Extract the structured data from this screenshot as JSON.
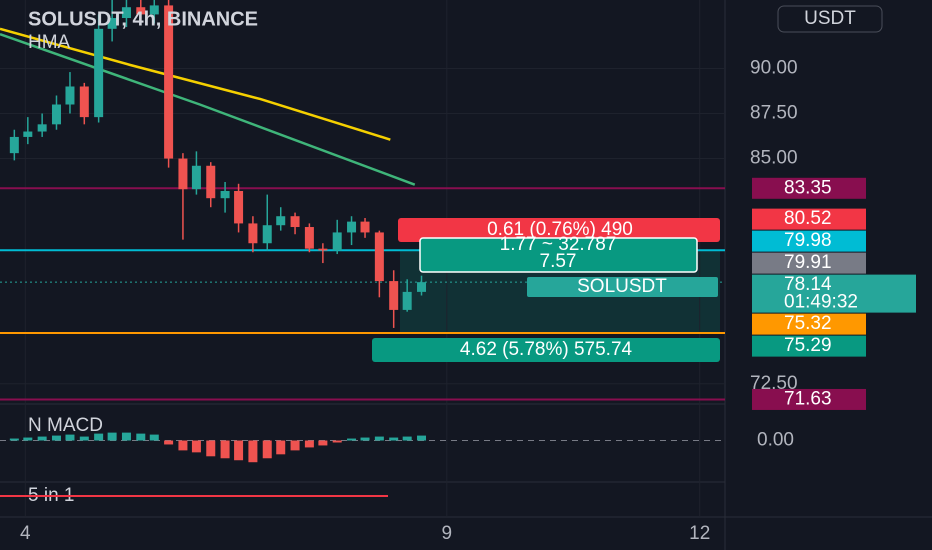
{
  "chart_data": {
    "type": "candlestick",
    "title": "SOLUSDT, 4h, BINANCE",
    "indicator": "HMA",
    "currency": "USDT",
    "up_color": "#26a69a",
    "down_color": "#ef5350",
    "x": [
      3.87,
      4.03,
      4.2,
      4.37,
      4.53,
      4.7,
      4.87,
      5.03,
      5.2,
      5.37,
      5.53,
      5.7,
      5.87,
      6.03,
      6.2,
      6.37,
      6.53,
      6.7,
      6.87,
      7.03,
      7.2,
      7.37,
      7.53,
      7.7,
      7.87,
      8.03,
      8.2,
      8.37,
      8.53,
      8.7
    ],
    "open": [
      85.3,
      86.2,
      86.5,
      86.9,
      88.0,
      89.0,
      87.3,
      92.2,
      92.8,
      93.4,
      93.0,
      93.5,
      85.0,
      83.3,
      84.6,
      82.8,
      83.2,
      81.4,
      80.3,
      81.3,
      81.8,
      81.2,
      80.0,
      79.9,
      80.9,
      81.5,
      80.9,
      78.2,
      76.6,
      77.6
    ],
    "high": [
      86.6,
      87.3,
      87.5,
      88.5,
      89.8,
      89.2,
      93.0,
      93.8,
      93.8,
      93.8,
      93.8,
      93.8,
      85.3,
      85.4,
      84.8,
      83.7,
      83.6,
      81.8,
      83.0,
      82.3,
      82.0,
      81.4,
      80.3,
      81.6,
      81.8,
      81.7,
      81.0,
      78.8,
      78.3,
      78.5
    ],
    "low": [
      84.9,
      85.8,
      86.2,
      86.6,
      87.5,
      86.9,
      87.0,
      91.5,
      92.3,
      92.6,
      92.5,
      84.5,
      80.5,
      83.0,
      82.3,
      82.0,
      80.9,
      79.8,
      79.9,
      81.0,
      80.8,
      79.8,
      79.2,
      79.7,
      80.2,
      80.6,
      77.3,
      75.6,
      76.5,
      77.4
    ],
    "close": [
      86.2,
      86.5,
      86.9,
      88.0,
      89.0,
      87.3,
      92.2,
      92.8,
      93.4,
      93.0,
      93.5,
      85.0,
      83.3,
      84.6,
      82.8,
      83.2,
      81.4,
      80.3,
      81.3,
      81.8,
      81.2,
      80.0,
      79.9,
      80.9,
      81.5,
      80.9,
      78.2,
      76.6,
      77.6,
      78.14
    ],
    "xlim": [
      3.7,
      12.3
    ],
    "xticks": [
      4,
      9,
      12
    ],
    "ylim": [
      71.6,
      93.8
    ],
    "yticks": [
      {
        "value": 90,
        "label": "90.00"
      },
      {
        "value": 87.5,
        "label": "87.50"
      },
      {
        "value": 85,
        "label": "85.00"
      },
      {
        "value": 72.5,
        "label": "72.50"
      }
    ],
    "hma": [
      {
        "color": "#f5d000",
        "x": [
          3.7,
          5.24,
          6.79,
          8.33
        ],
        "values": [
          92.2,
          90.2,
          88.3,
          86.05
        ]
      },
      {
        "color": "#3fb57a",
        "x": [
          3.7,
          6.07,
          8.62
        ],
        "values": [
          91.9,
          88.0,
          83.55
        ]
      }
    ],
    "hlines": [
      {
        "value": 83.35,
        "color": "#880e4f"
      },
      {
        "value": 79.91,
        "color": "#00bcd4"
      },
      {
        "value": 75.32,
        "color": "#ff9800"
      },
      {
        "value": 71.63,
        "color": "#880e4f"
      }
    ],
    "price_labels": [
      {
        "value": 83.35,
        "color": "#880e4f"
      },
      {
        "value": 80.52,
        "color": "#f23645"
      },
      {
        "value": 79.98,
        "color": "#00bcd4"
      },
      {
        "value": 79.91,
        "color": "#787b86"
      },
      {
        "value": 78.14,
        "color": "#26a69a",
        "sublabel": "01:49:32"
      },
      {
        "value": 75.32,
        "color": "#ff9800"
      },
      {
        "value": 75.29,
        "color": "#089981"
      },
      {
        "value": 71.63,
        "color": "#880e4f"
      }
    ],
    "position": {
      "stop_label": "0.61 (0.76%) 490",
      "info": [
        "1.77 ~ 32.787",
        "7.57"
      ],
      "symbol": "SOLUSDT",
      "target_label": "4.62 (5.78%) 575.74"
    },
    "macd": {
      "name": "N MACD",
      "ylim": [
        -1.9,
        1.8
      ],
      "yticks": [
        {
          "value": 0,
          "label": "0.00"
        }
      ],
      "values": [
        0.1,
        0.15,
        0.2,
        0.25,
        0.3,
        0.2,
        0.35,
        0.4,
        0.4,
        0.35,
        0.3,
        -0.2,
        -0.5,
        -0.6,
        -0.8,
        -0.9,
        -1.0,
        -1.1,
        -0.9,
        -0.7,
        -0.5,
        -0.35,
        -0.25,
        -0.1,
        0.1,
        0.15,
        0.2,
        0.15,
        0.2,
        0.25
      ]
    },
    "oscillator": {
      "name": "5 in 1"
    }
  }
}
